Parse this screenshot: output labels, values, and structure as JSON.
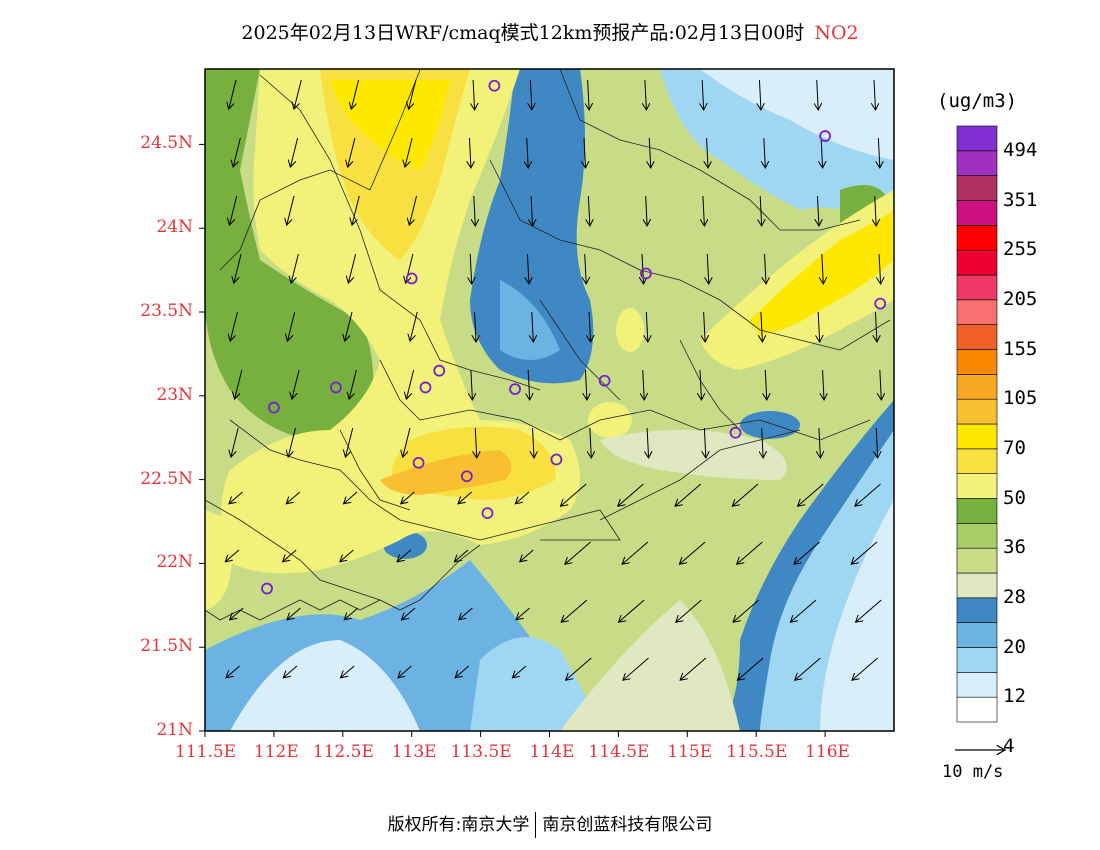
{
  "header": {
    "title": "2025年02月13日WRF/cmaq模式12km预报产品:02月13日00时",
    "species": "NO2"
  },
  "axes": {
    "lat_ticks": [
      "24.5N",
      "24N",
      "23.5N",
      "23N",
      "22.5N",
      "22N",
      "21.5N",
      "21N"
    ],
    "lon_ticks": [
      "111.5E",
      "112E",
      "112.5E",
      "113E",
      "113.5E",
      "114E",
      "114.5E",
      "115E",
      "115.5E",
      "116E"
    ]
  },
  "colorbar": {
    "unit": "(ug/m3)",
    "labels": [
      "494",
      "351",
      "255",
      "205",
      "155",
      "105",
      "70",
      "50",
      "36",
      "28",
      "20",
      "12",
      "4"
    ],
    "colors": [
      "#ffffff",
      "#d8eefa",
      "#9fd6f2",
      "#6cb2e2",
      "#4088c4",
      "#e0e8c2",
      "#c8dc88",
      "#a8cc68",
      "#78b040",
      "#f2f27a",
      "#f8e040",
      "#ffe800",
      "#f8c030",
      "#f8a820",
      "#f88800",
      "#f06028",
      "#f87070",
      "#f03868",
      "#f00030",
      "#ff0000",
      "#cc1080",
      "#b03060",
      "#a030c0",
      "#8030d0"
    ]
  },
  "wind_reference": {
    "label": "10 m/s"
  },
  "footer": {
    "copyright_left": "版权所有:南京大学",
    "copyright_right": "南京创蓝科技有限公司"
  },
  "map": {
    "lon_range": [
      111.5,
      116.5
    ],
    "lat_range": [
      21.0,
      24.95
    ],
    "stations": [
      {
        "lon": 113.6,
        "lat": 24.85
      },
      {
        "lon": 116.0,
        "lat": 24.55
      },
      {
        "lon": 113.0,
        "lat": 23.7
      },
      {
        "lon": 114.7,
        "lat": 23.73
      },
      {
        "lon": 116.4,
        "lat": 23.55
      },
      {
        "lon": 112.45,
        "lat": 23.05
      },
      {
        "lon": 113.1,
        "lat": 23.05
      },
      {
        "lon": 113.2,
        "lat": 23.15
      },
      {
        "lon": 113.75,
        "lat": 23.04
      },
      {
        "lon": 114.4,
        "lat": 23.09
      },
      {
        "lon": 112.0,
        "lat": 22.93
      },
      {
        "lon": 115.35,
        "lat": 22.78
      },
      {
        "lon": 113.05,
        "lat": 22.6
      },
      {
        "lon": 113.4,
        "lat": 22.52
      },
      {
        "lon": 114.05,
        "lat": 22.62
      },
      {
        "lon": 113.55,
        "lat": 22.3
      },
      {
        "lon": 111.95,
        "lat": 21.85
      }
    ]
  }
}
